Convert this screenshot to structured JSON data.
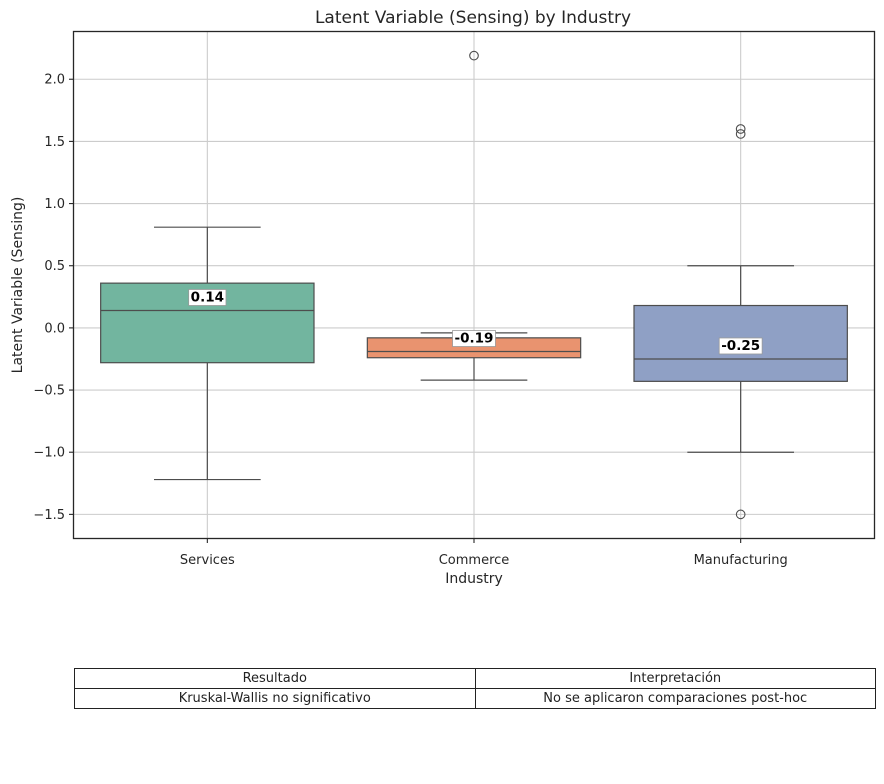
{
  "chart_data": {
    "type": "box",
    "title": "Latent Variable (Sensing) by Industry",
    "xlabel": "Industry",
    "ylabel": "Latent Variable (Sensing)",
    "ylim": [
      -1.69,
      2.38
    ],
    "yticks": [
      -1.5,
      -1.0,
      -0.5,
      0.0,
      0.5,
      1.0,
      1.5,
      2.0
    ],
    "ytick_labels": [
      "−1.5",
      "−1.0",
      "−0.5",
      "0.0",
      "0.5",
      "1.0",
      "1.5",
      "2.0"
    ],
    "grid": true,
    "categories": [
      "Services",
      "Commerce",
      "Manufacturing"
    ],
    "boxes": [
      {
        "category": "Services",
        "color": "#72b59f",
        "q1": -0.28,
        "median": 0.14,
        "q3": 0.36,
        "whisker_low": -1.22,
        "whisker_high": 0.81,
        "outliers": [],
        "median_label": "0.14"
      },
      {
        "category": "Commerce",
        "color": "#e9936f",
        "q1": -0.24,
        "median": -0.19,
        "q3": -0.08,
        "whisker_low": -0.42,
        "whisker_high": -0.04,
        "outliers": [
          2.19
        ],
        "median_label": "-0.19"
      },
      {
        "category": "Manufacturing",
        "color": "#8fa0c5",
        "q1": -0.43,
        "median": -0.25,
        "q3": 0.18,
        "whisker_low": -1.0,
        "whisker_high": 0.5,
        "outliers": [
          1.6,
          1.56,
          -1.5
        ],
        "median_label": "-0.25"
      }
    ]
  },
  "table": {
    "headers": [
      "Resultado",
      "Interpretación"
    ],
    "rows": [
      [
        "Kruskal-Wallis no significativo",
        "No se aplicaron comparaciones post-hoc"
      ]
    ]
  }
}
